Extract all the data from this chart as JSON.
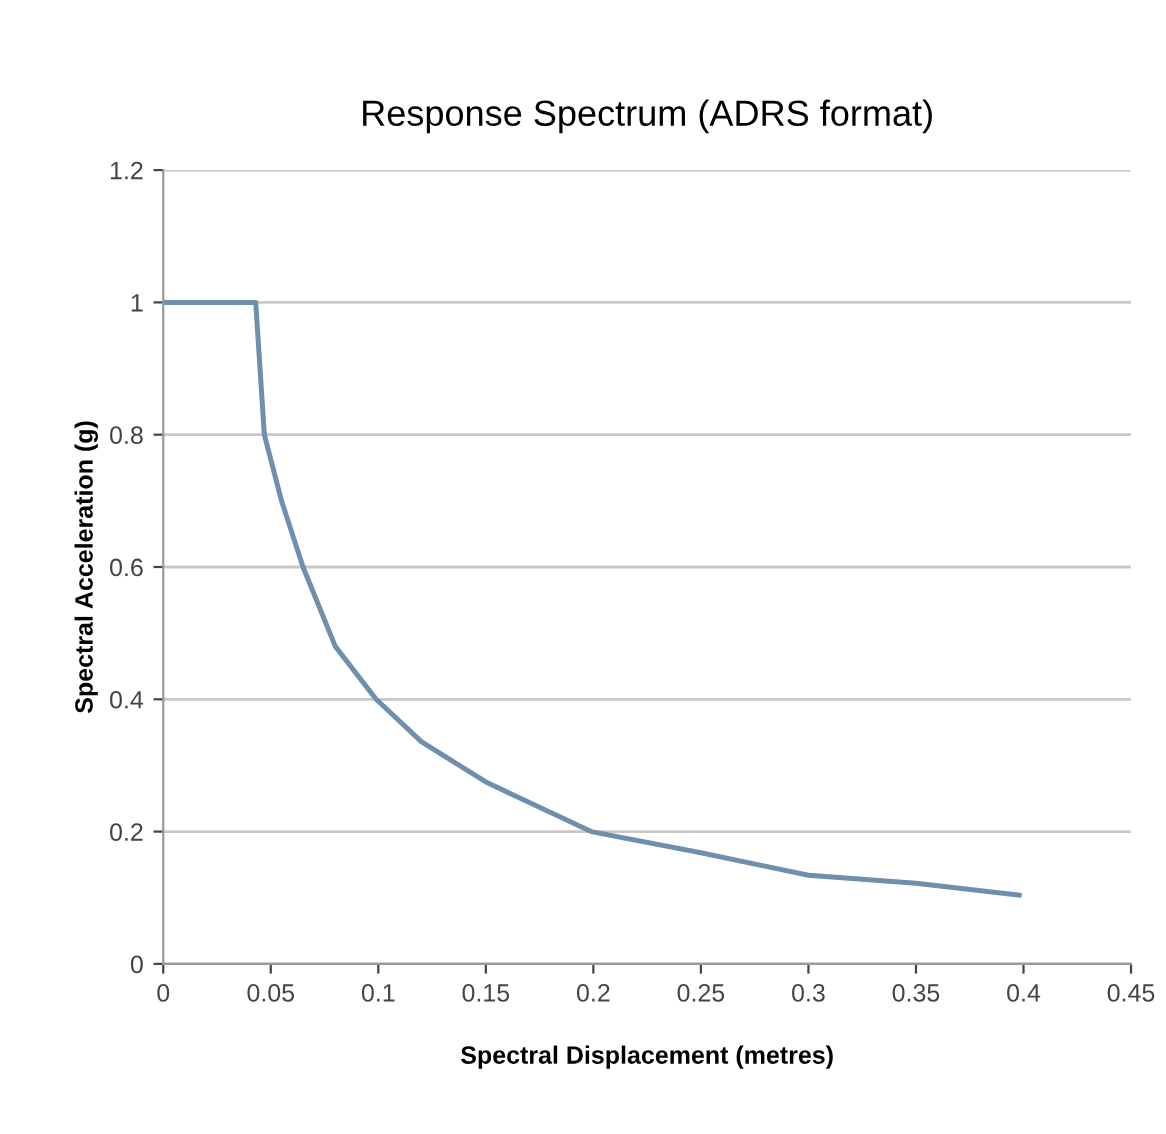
{
  "chart_data": {
    "type": "line",
    "title": "Response Spectrum (ADRS format)",
    "xlabel": "Spectral Displacement (metres)",
    "ylabel": "Spectral Acceleration (g)",
    "series": [
      {
        "color": "#6f8fae",
        "x": [
          0,
          0.02,
          0.043,
          0.047,
          0.055,
          0.065,
          0.08,
          0.099,
          0.12,
          0.15,
          0.199,
          0.25,
          0.3,
          0.35,
          0.398
        ],
        "values": [
          1,
          1,
          1,
          0.8,
          0.7,
          0.6,
          0.48,
          0.4,
          0.336,
          0.275,
          0.2,
          0.168,
          0.134,
          0.122,
          0.104
        ]
      }
    ],
    "xlim": [
      0,
      0.45
    ],
    "xticks": [
      0,
      0.05,
      0.1,
      0.15,
      0.2,
      0.25,
      0.3,
      0.35,
      0.4,
      0.45
    ],
    "ylim": [
      0,
      1.2
    ],
    "yticks": [
      0,
      0.2,
      0.4,
      0.6,
      0.8,
      1,
      1.2
    ],
    "grid": "y",
    "legend": false,
    "marker": "none",
    "line_style": "solid"
  }
}
